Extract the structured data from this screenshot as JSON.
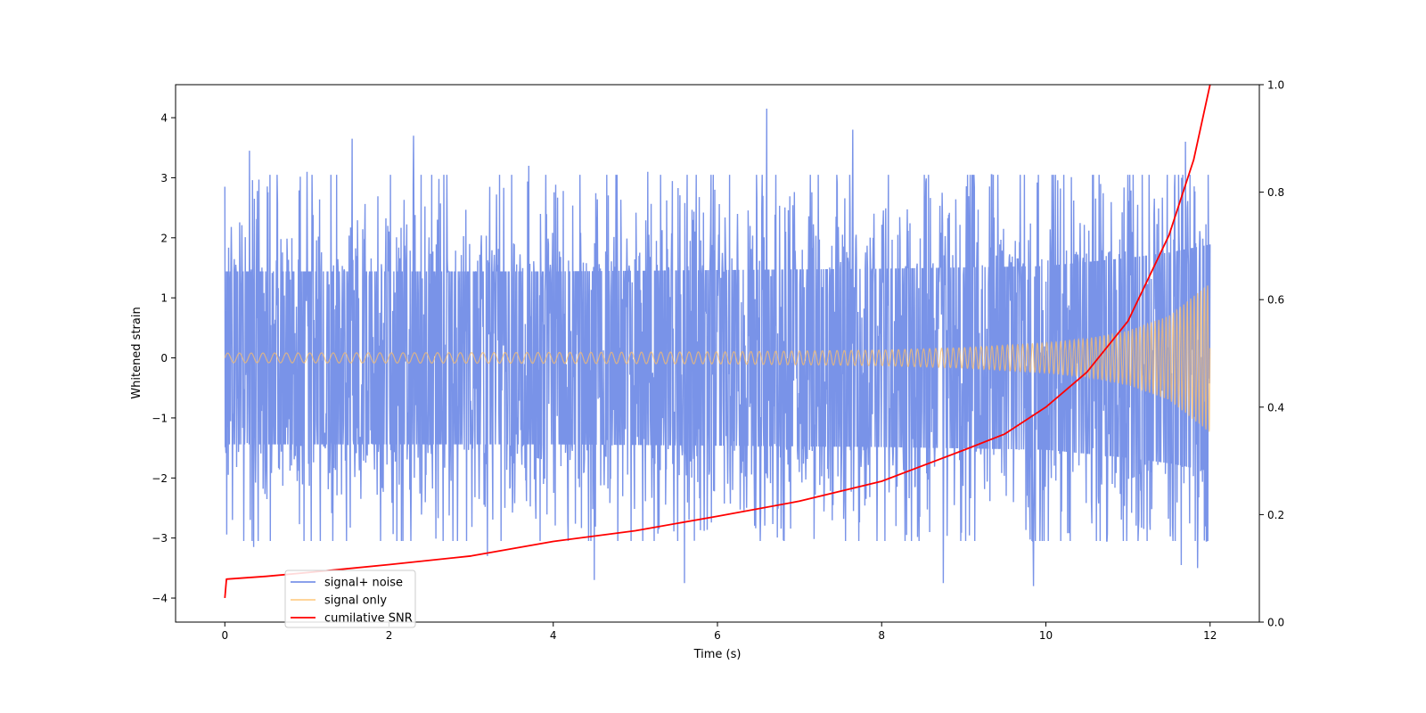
{
  "chart_data": {
    "type": "line",
    "title": "",
    "xlabel": "Time (s)",
    "ylabel": "Whitened strain",
    "ylabel_right": "",
    "xlim": [
      -0.6,
      12.6
    ],
    "ylim": [
      -4.4,
      4.55
    ],
    "ylim_right": [
      0.0,
      1.0
    ],
    "xticks": [
      0,
      2,
      4,
      6,
      8,
      10,
      12
    ],
    "yticks": [
      -4,
      -3,
      -2,
      -1,
      0,
      1,
      2,
      3,
      4
    ],
    "yticks_right": [
      0.0,
      0.2,
      0.4,
      0.6,
      0.8,
      1.0
    ],
    "xtick_labels": [
      "0",
      "2",
      "4",
      "6",
      "8",
      "10",
      "12"
    ],
    "ytick_labels": [
      "−4",
      "−3",
      "−2",
      "−1",
      "0",
      "1",
      "2",
      "3",
      "4"
    ],
    "ytick_right_labels": [
      "0.0",
      "0.2",
      "0.4",
      "0.6",
      "0.8",
      "1.0"
    ],
    "grid": false,
    "legend_position": "lower-left",
    "colors": {
      "noise": "#6a87e6",
      "signal": "#ffbf66",
      "snr": "#ff0000"
    },
    "series": [
      {
        "name": "signal+ noise",
        "axis": "left",
        "kind": "noisy-trace",
        "x_range": [
          0,
          12
        ],
        "amplitude_envelope": {
          "x": [
            0,
            4,
            8,
            10,
            11,
            11.5,
            12
          ],
          "y": [
            1.6,
            1.6,
            1.65,
            1.7,
            1.85,
            1.95,
            2.1
          ]
        },
        "extremes": [
          {
            "x": 0.0,
            "y": 2.85
          },
          {
            "x": 0.3,
            "y": 3.45
          },
          {
            "x": 1.0,
            "y": 3.1
          },
          {
            "x": 1.55,
            "y": 3.65
          },
          {
            "x": 2.3,
            "y": 3.7
          },
          {
            "x": 3.7,
            "y": 3.2
          },
          {
            "x": 5.15,
            "y": 3.1
          },
          {
            "x": 6.6,
            "y": 4.15
          },
          {
            "x": 7.65,
            "y": 3.8
          },
          {
            "x": 11.7,
            "y": 3.6
          },
          {
            "x": 11.85,
            "y": 3.6
          },
          {
            "x": 0.35,
            "y": -3.15
          },
          {
            "x": 3.2,
            "y": -3.3
          },
          {
            "x": 4.5,
            "y": -3.7
          },
          {
            "x": 5.6,
            "y": -3.75
          },
          {
            "x": 8.75,
            "y": -3.75
          },
          {
            "x": 9.85,
            "y": -3.8
          },
          {
            "x": 11.65,
            "y": -3.45
          },
          {
            "x": 11.85,
            "y": -3.5
          }
        ]
      },
      {
        "name": "signal only",
        "axis": "left",
        "kind": "chirp",
        "x_range": [
          0,
          12
        ],
        "amplitude_envelope": {
          "x": [
            0,
            2,
            4,
            6,
            8,
            9,
            10,
            10.5,
            11,
            11.5,
            12
          ],
          "y": [
            0.08,
            0.085,
            0.09,
            0.1,
            0.13,
            0.17,
            0.25,
            0.32,
            0.45,
            0.7,
            1.25
          ]
        }
      },
      {
        "name": "cumilative SNR",
        "axis": "right",
        "x": [
          0.0,
          0.02,
          0.5,
          1,
          2,
          3,
          4,
          5,
          6,
          7,
          8,
          9,
          9.5,
          10,
          10.5,
          11,
          11.5,
          11.8,
          12.0
        ],
        "y": [
          0.045,
          0.08,
          0.085,
          0.092,
          0.107,
          0.123,
          0.15,
          0.17,
          0.197,
          0.225,
          0.262,
          0.32,
          0.35,
          0.4,
          0.465,
          0.56,
          0.72,
          0.86,
          1.0
        ]
      }
    ]
  }
}
